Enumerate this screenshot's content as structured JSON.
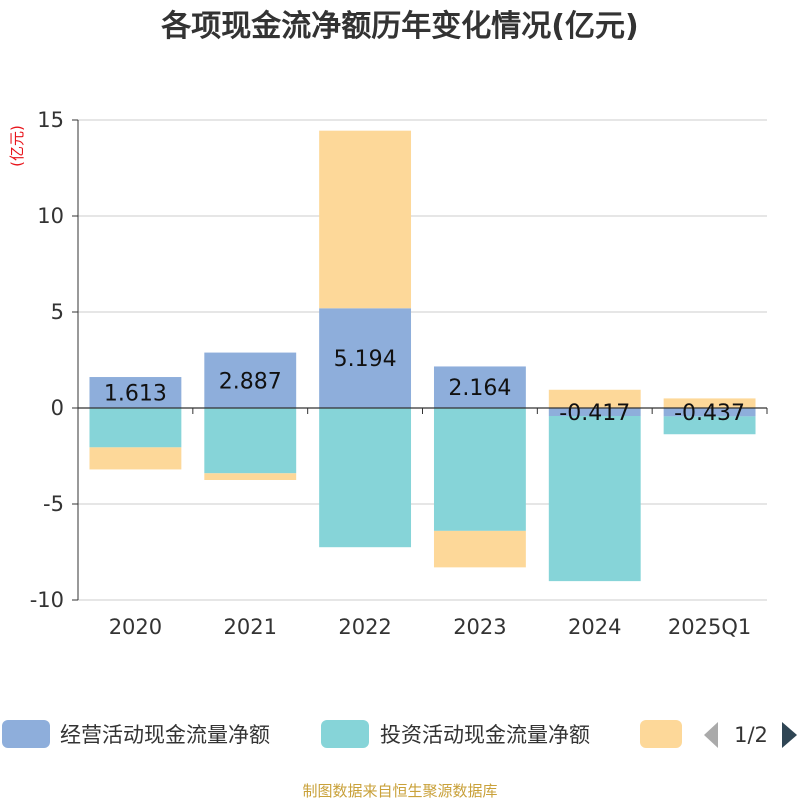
{
  "chart_data": {
    "type": "bar",
    "stacked": true,
    "title": "各项现金流净额历年变化情况(亿元)",
    "unit_label": "(亿元)",
    "categories": [
      "2020",
      "2021",
      "2022",
      "2023",
      "2024",
      "2025Q1"
    ],
    "ylim": [
      -10,
      15
    ],
    "yticks": [
      15,
      10,
      5,
      0,
      -5,
      -10
    ],
    "grid": true,
    "series": [
      {
        "name": "经营活动现金流量净额",
        "color": "#8eaedb",
        "values": [
          1.613,
          2.887,
          5.194,
          2.164,
          -0.417,
          -0.437
        ],
        "labels": [
          "1.613",
          "2.887",
          "5.194",
          "2.164",
          "-0.417",
          "-0.437"
        ]
      },
      {
        "name": "投资活动现金流量净额",
        "color": "#86d4d8",
        "values": [
          -2.05,
          -3.4,
          -7.25,
          -6.4,
          -8.6,
          -0.93
        ]
      },
      {
        "name": "",
        "color": "#fdd899",
        "values": [
          -1.15,
          -0.35,
          9.25,
          -1.9,
          0.95,
          0.5
        ]
      }
    ],
    "legend": {
      "position": "bottom",
      "page_indicator": "1/2"
    }
  },
  "source": "制图数据来自恒生聚源数据库"
}
